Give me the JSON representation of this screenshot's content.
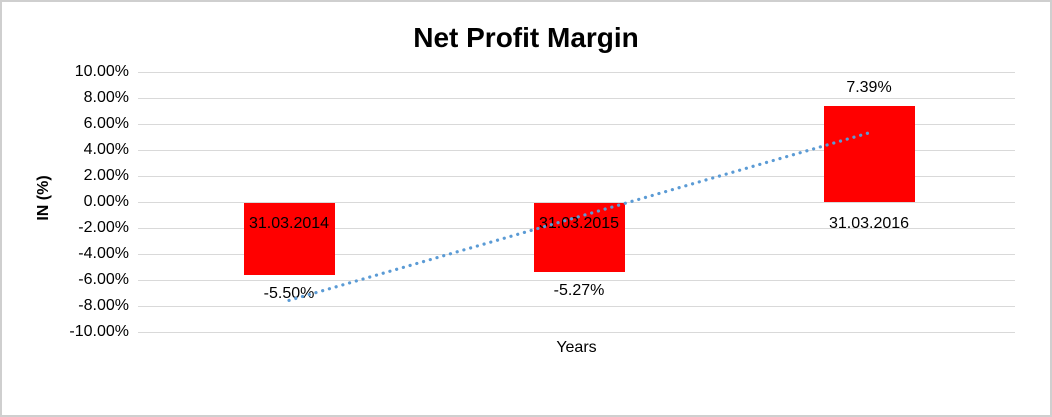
{
  "window": {
    "background_color": "#ffffff",
    "border_color": "#cfcfcf"
  },
  "chart_data": {
    "type": "bar",
    "title": "Net Profit Margin",
    "xlabel": "Years",
    "ylabel": "IN (%)",
    "categories": [
      "31.03.2014",
      "31.03.2015",
      "31.03.2016"
    ],
    "values": [
      -5.5,
      -5.27,
      7.39
    ],
    "data_labels": [
      "-5.50%",
      "-5.27%",
      "7.39%"
    ],
    "bar_color": "#ff0000",
    "label_color": "#000000",
    "ylim": [
      -10,
      10
    ],
    "ytick_values": [
      10,
      8,
      6,
      4,
      2,
      0,
      -2,
      -4,
      -6,
      -8,
      -10
    ],
    "ytick_labels": [
      "10.00%",
      "8.00%",
      "6.00%",
      "4.00%",
      "2.00%",
      "0.00%",
      "-2.00%",
      "-4.00%",
      "-6.00%",
      "-8.00%",
      "-10.00%"
    ],
    "grid": true,
    "gridline_color": "#d9d9d9",
    "legend": "none",
    "trendline": {
      "type": "linear",
      "style": "dotted",
      "color": "#5b9bd5",
      "start_value": -7.57,
      "end_value": 5.32
    }
  }
}
